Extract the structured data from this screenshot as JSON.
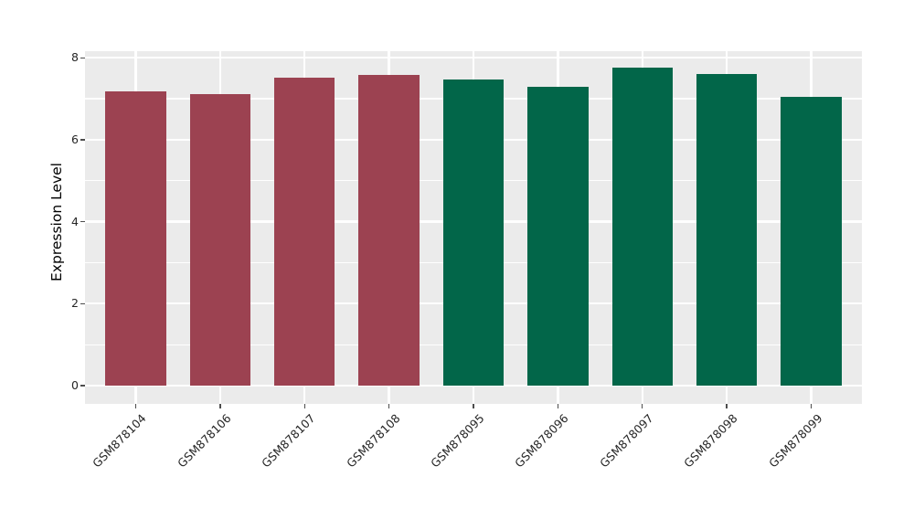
{
  "chart_data": {
    "type": "bar",
    "title": "",
    "xlabel": "",
    "ylabel": "Expression Level",
    "categories": [
      "GSM878104",
      "GSM878106",
      "GSM878107",
      "GSM878108",
      "GSM878095",
      "GSM878096",
      "GSM878097",
      "GSM878098",
      "GSM878099"
    ],
    "values": [
      7.17,
      7.12,
      7.52,
      7.57,
      7.47,
      7.3,
      7.76,
      7.61,
      7.05
    ],
    "bar_colors": [
      "#9C4251",
      "#9C4251",
      "#9C4251",
      "#9C4251",
      "#026649",
      "#026649",
      "#026649",
      "#026649",
      "#026649"
    ],
    "group_colors": {
      "first_group": "#9C4251",
      "second_group": "#026649"
    },
    "ylim": [
      0,
      8.2
    ],
    "yticks": [
      0,
      2,
      4,
      6,
      8
    ],
    "yticks_minor": [
      1,
      3,
      5,
      7
    ],
    "ytick_labels": [
      "0",
      "2",
      "4",
      "6",
      "8"
    ],
    "grid": true,
    "legend": "none",
    "panel_background": "#EBEBEB",
    "grid_color": "#FFFFFF",
    "figure_background": "#FFFFFF"
  }
}
